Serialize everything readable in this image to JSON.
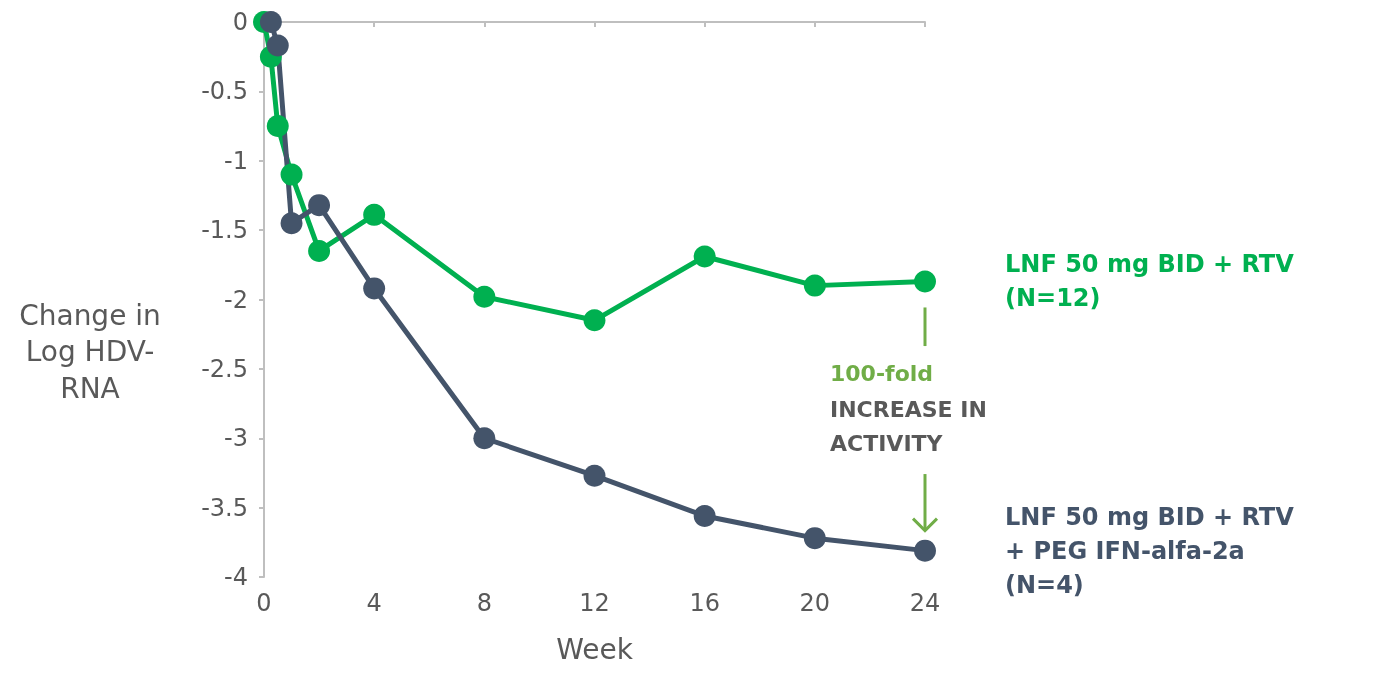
{
  "chart_data": {
    "type": "line",
    "xlabel": "Week",
    "ylabel": "Change in Log HDV-RNA",
    "xlim": [
      0,
      24
    ],
    "xticks": [
      0,
      4,
      8,
      12,
      16,
      20,
      24
    ],
    "ylim": [
      -4,
      0
    ],
    "yticks": [
      -4,
      -3.5,
      -3,
      -2.5,
      -2,
      -1.5,
      -1,
      -0.5,
      0
    ],
    "grid": false,
    "legend": false,
    "marker": "circle",
    "line_style": "solid",
    "annotations": [
      "100-fold",
      "INCREASE IN ACTIVITY"
    ],
    "series": [
      {
        "name": "LNF 50 mg BID + RTV (N=12)",
        "color": "#00b050",
        "x": [
          0,
          0.25,
          0.5,
          1,
          2,
          4,
          8,
          12,
          16,
          20,
          24
        ],
        "values": [
          0,
          -0.25,
          -0.75,
          -1.1,
          -1.65,
          -1.39,
          -1.98,
          -2.15,
          -1.69,
          -1.9,
          -1.87
        ]
      },
      {
        "name": "LNF 50 mg BID + RTV + PEG IFN-alfa-2a (N=4)",
        "color": "#44546a",
        "x": [
          0.25,
          0.5,
          1,
          2,
          4,
          8,
          12,
          16,
          20,
          24
        ],
        "values": [
          0,
          -0.17,
          -1.45,
          -1.32,
          -1.92,
          -3,
          -3.27,
          -3.56,
          -3.72,
          -3.81
        ]
      }
    ]
  }
}
